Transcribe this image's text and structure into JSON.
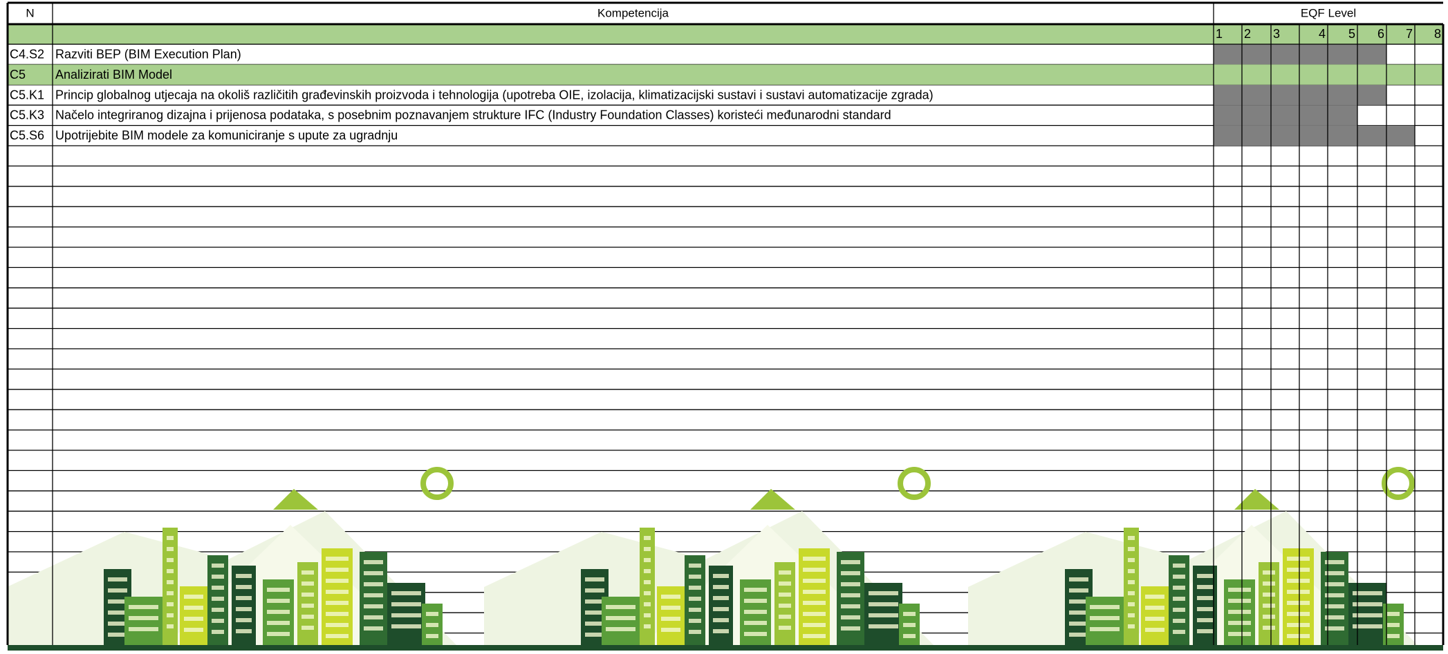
{
  "header": {
    "n": "N",
    "competency": "Kompetencija",
    "eqf": "EQF Level"
  },
  "level_header": [
    "1",
    "2",
    "3",
    "4",
    "5",
    "6",
    "7",
    "8"
  ],
  "rows": [
    {
      "code": "C4.S2",
      "text": "Razviti BEP (BIM Execution Plan)",
      "group": false,
      "shaded": [
        true,
        true,
        true,
        true,
        true,
        true,
        false,
        false
      ]
    },
    {
      "code": "C5",
      "text": "Analizirati BIM Model",
      "group": true,
      "shaded": [
        false,
        false,
        false,
        false,
        false,
        false,
        false,
        false
      ]
    },
    {
      "code": "C5.K1",
      "text": "Princip globalnog utjecaja na okoliš različitih građevinskih proizvoda i tehnologija (upotreba OIE, izolacija, klimatizacijski sustavi i sustavi automatizacije zgrada)",
      "group": false,
      "shaded": [
        true,
        true,
        true,
        true,
        true,
        true,
        false,
        false
      ]
    },
    {
      "code": "C5.K3",
      "text": "Načelo integriranog dizajna i prijenosa podataka, s posebnim poznavanjem strukture IFC (Industry Foundation Classes) koristeći međunarodni standard",
      "group": false,
      "shaded": [
        true,
        true,
        true,
        true,
        true,
        false,
        false,
        false
      ]
    },
    {
      "code": "C5.S6",
      "text": "Upotrijebite BIM modele za komuniciranje s upute za ugradnju",
      "group": false,
      "shaded": [
        true,
        true,
        true,
        true,
        true,
        true,
        true,
        false
      ]
    }
  ]
}
